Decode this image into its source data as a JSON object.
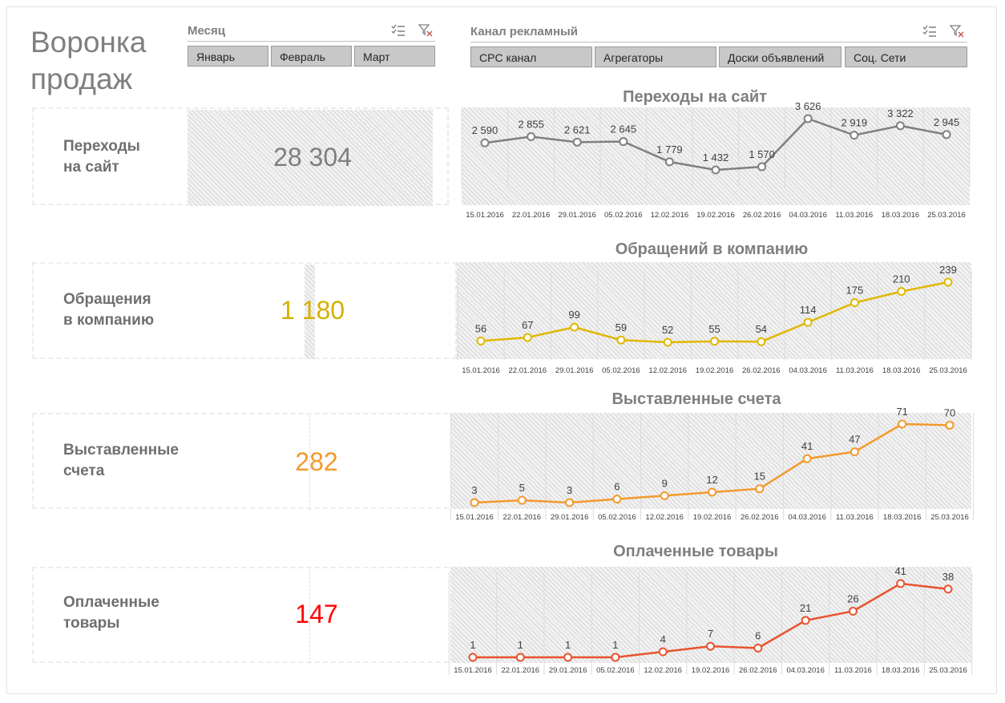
{
  "page": {
    "title_line1": "Воронка",
    "title_line2": "продаж"
  },
  "slicers": {
    "month": {
      "title": "Месяц",
      "buttons": [
        "Январь",
        "Февраль",
        "Март"
      ]
    },
    "channel": {
      "title": "Канал рекламный",
      "buttons": [
        "CPC канал",
        "Агрегаторы",
        "Доски объявлений",
        "Соц. Сети"
      ]
    }
  },
  "kpis": [
    {
      "line1": "Переходы",
      "line2": "на сайт",
      "value": "28 304",
      "color": "#7f7f7f"
    },
    {
      "line1": "Обращения",
      "line2": "в компанию",
      "value": "1 180",
      "color": "#d4b000"
    },
    {
      "line1": "Выставленные",
      "line2": "счета",
      "value": "282",
      "color": "#f39a2c"
    },
    {
      "line1": "Оплаченные",
      "line2": "товары",
      "value": "147",
      "color": "#ff0000"
    }
  ],
  "chart_data": [
    {
      "type": "line",
      "title": "Переходы на сайт",
      "x": [
        "15.01.2016",
        "22.01.2016",
        "29.01.2016",
        "05.02.2016",
        "12.02.2016",
        "19.02.2016",
        "26.02.2016",
        "04.03.2016",
        "11.03.2016",
        "18.03.2016",
        "25.03.2016"
      ],
      "values": [
        2590,
        2855,
        2621,
        2645,
        1779,
        1432,
        1570,
        3626,
        2919,
        3322,
        2945
      ],
      "labels": [
        "2 590",
        "2 855",
        "2 621",
        "2 645",
        "1 779",
        "1 432",
        "1 570",
        "3 626",
        "2 919",
        "3 322",
        "2 945"
      ],
      "color": "#808080",
      "grid": true
    },
    {
      "type": "line",
      "title": "Обращений в компанию",
      "x": [
        "15.01.2016",
        "22.01.2016",
        "29.01.2016",
        "05.02.2016",
        "12.02.2016",
        "19.02.2016",
        "26.02.2016",
        "04.03.2016",
        "11.03.2016",
        "18.03.2016",
        "25.03.2016"
      ],
      "values": [
        56,
        67,
        99,
        59,
        52,
        55,
        54,
        114,
        175,
        210,
        239
      ],
      "labels": [
        "56",
        "67",
        "99",
        "59",
        "52",
        "55",
        "54",
        "114",
        "175",
        "210",
        "239"
      ],
      "color": "#e0b800",
      "grid": true
    },
    {
      "type": "line",
      "title": "Выставленные счета",
      "x": [
        "15.01.2016",
        "22.01.2016",
        "29.01.2016",
        "05.02.2016",
        "12.02.2016",
        "19.02.2016",
        "26.02.2016",
        "04.03.2016",
        "11.03.2016",
        "18.03.2016",
        "25.03.2016"
      ],
      "values": [
        3,
        5,
        3,
        6,
        9,
        12,
        15,
        41,
        47,
        71,
        70
      ],
      "labels": [
        "3",
        "5",
        "3",
        "6",
        "9",
        "12",
        "15",
        "41",
        "47",
        "71",
        "70"
      ],
      "color": "#f39a2c",
      "grid": true
    },
    {
      "type": "line",
      "title": "Оплаченные товары",
      "x": [
        "15.01.2016",
        "22.01.2016",
        "29.01.2016",
        "05.02.2016",
        "12.02.2016",
        "19.02.2016",
        "26.02.2016",
        "04.03.2016",
        "11.03.2016",
        "18.03.2016",
        "25.03.2016"
      ],
      "values": [
        1,
        1,
        1,
        1,
        4,
        7,
        6,
        21,
        26,
        41,
        38
      ],
      "labels": [
        "1",
        "1",
        "1",
        "1",
        "4",
        "7",
        "6",
        "21",
        "26",
        "41",
        "38"
      ],
      "color": "#e8532e",
      "grid": true
    }
  ]
}
